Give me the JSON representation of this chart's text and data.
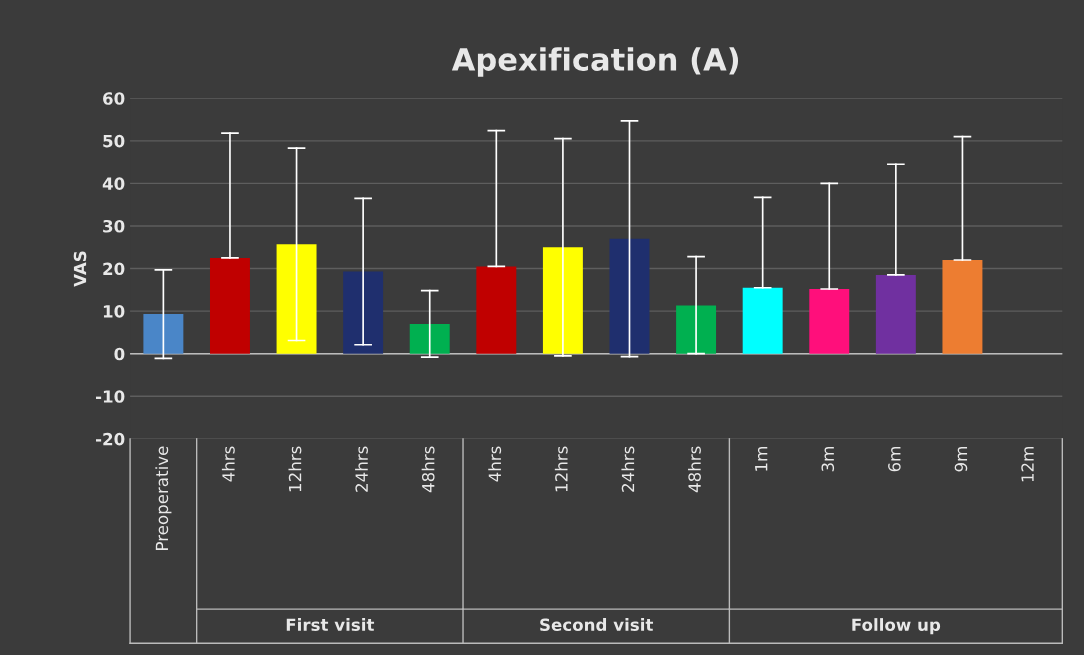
{
  "chart_data": {
    "type": "bar",
    "title": "Apexification (A)",
    "ylabel": "VAS",
    "categories": [
      "Preoperative",
      "4hrs",
      "12hrs",
      "24hrs",
      "48hrs",
      "4hrs",
      "12hrs",
      "24hrs",
      "48hrs",
      "1m",
      "3m",
      "6m",
      "9m",
      "12m"
    ],
    "values": [
      9.3,
      22.5,
      25.7,
      19.3,
      7.0,
      20.5,
      25.0,
      27.0,
      11.3,
      15.5,
      15.2,
      18.5,
      22.0,
      0
    ],
    "colors": [
      "#4a86c8",
      "#c00000",
      "#ffff00",
      "#1f2f6e",
      "#00b050",
      "#c00000",
      "#ffff00",
      "#1f2f6e",
      "#00b050",
      "#00ffff",
      "#ff0f7b",
      "#7030a0",
      "#ed7d31",
      "#ffffff"
    ],
    "errors": [
      [
        -1.1,
        19.7
      ],
      [
        22.5,
        51.8
      ],
      [
        3.1,
        48.3
      ],
      [
        2.1,
        36.5
      ],
      [
        -0.8,
        14.8
      ],
      [
        20.5,
        52.4
      ],
      [
        -0.5,
        50.5
      ],
      [
        -0.7,
        54.7
      ],
      [
        0,
        22.8
      ],
      [
        15.5,
        36.7
      ],
      [
        15.2,
        40.0
      ],
      [
        18.5,
        44.5
      ],
      [
        22.0,
        51.0
      ],
      null
    ],
    "ylim": [
      -20,
      60
    ],
    "yticks": [
      -20,
      -10,
      0,
      10,
      20,
      30,
      40,
      50,
      60
    ],
    "grid": "y",
    "annotations": [
      "First visit",
      "Second visit",
      "Follow up"
    ]
  }
}
